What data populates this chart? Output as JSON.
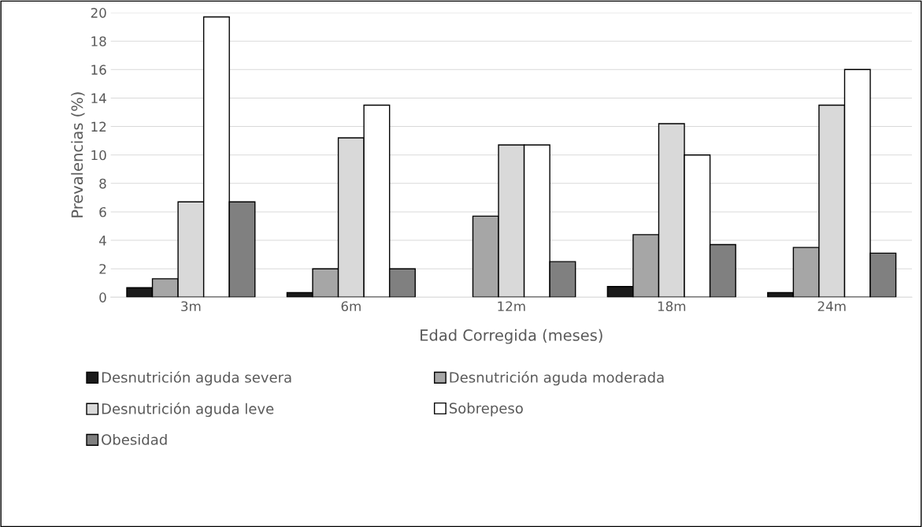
{
  "chart_data": {
    "type": "bar",
    "xlabel": "Edad Corregida (meses)",
    "ylabel": "Prevalencias (%)",
    "categories": [
      "3m",
      "6m",
      "12m",
      "18m",
      "24m"
    ],
    "series": [
      {
        "name": "Desnutrición aguda severa",
        "color": "#1a1a1a",
        "values": [
          0.67,
          0.33,
          0,
          0.75,
          0.33
        ]
      },
      {
        "name": "Desnutrición aguda moderada",
        "color": "#a6a6a6",
        "values": [
          1.3,
          2.0,
          5.7,
          4.4,
          3.5
        ]
      },
      {
        "name": "Desnutrición aguda leve",
        "color": "#d9d9d9",
        "values": [
          6.7,
          11.2,
          10.7,
          12.2,
          13.5
        ]
      },
      {
        "name": "Sobrepeso",
        "color": "#ffffff",
        "values": [
          19.7,
          13.5,
          10.7,
          10.0,
          16.0
        ]
      },
      {
        "name": "Obesidad",
        "color": "#808080",
        "values": [
          6.7,
          2.0,
          2.5,
          3.7,
          3.1
        ]
      }
    ],
    "ylim": [
      0,
      20
    ],
    "yticks": [
      0,
      2,
      4,
      6,
      8,
      10,
      12,
      14,
      16,
      18,
      20
    ],
    "grid": "y",
    "legend": "bottom"
  }
}
